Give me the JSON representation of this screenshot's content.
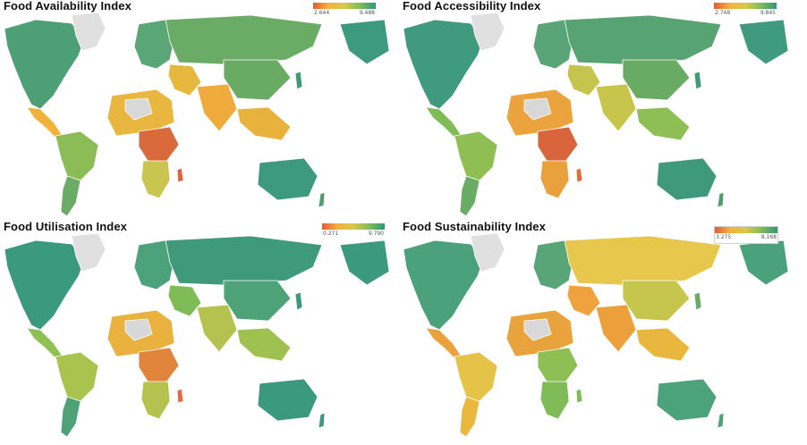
{
  "panels": [
    {
      "title": "Food Availability Index",
      "legend": {
        "min": "2.644",
        "max": "9.488",
        "colors": [
          "#e35a3a",
          "#f4b23c",
          "#7fbc5a",
          "#31957a"
        ]
      },
      "regions": {
        "north-america": "#4d9f76",
        "greenland": "#e0e0e0",
        "central-america": "#f2b23a",
        "south-america-north": "#8cbc55",
        "south-america-south": "#6aab65",
        "europe": "#5aa676",
        "russia": "#6aab66",
        "middle-east": "#e7b83e",
        "north-africa": "#e9b740",
        "central-africa": "#d86a3c",
        "southern-africa": "#c9c550",
        "south-asia": "#efab3b",
        "china": "#6aab63",
        "southeast-asia": "#e9b23c",
        "australia": "#3e9a7c",
        "madagascar": "#e3643a",
        "new-zealand": "#4e9c70",
        "japan": "#3f9a7a",
        "alaska": "#3e9a7c",
        "sahara": "#d8d8d8"
      }
    },
    {
      "title": "Food Accessibility Index",
      "legend": {
        "min": "2.748",
        "max": "9.845",
        "colors": [
          "#e35a3a",
          "#f4b23c",
          "#7fbc5a",
          "#31957a"
        ]
      },
      "regions": {
        "north-america": "#3f9a7e",
        "greenland": "#e0e0e0",
        "central-america": "#7fbc58",
        "south-america-north": "#8fbf52",
        "south-america-south": "#6aab66",
        "europe": "#5aa577",
        "russia": "#58a372",
        "middle-east": "#c5c44e",
        "north-africa": "#eba33e",
        "central-africa": "#d9653c",
        "southern-africa": "#e9a13e",
        "south-asia": "#c8c54d",
        "china": "#6aab63",
        "southeast-asia": "#8ebf54",
        "australia": "#3f9a7c",
        "madagascar": "#e46a3b",
        "new-zealand": "#4e9c70",
        "japan": "#3f9a7a",
        "alaska": "#3f9a7e",
        "sahara": "#d8d8d8"
      }
    },
    {
      "title": "Food Utilisation Index",
      "legend": {
        "min": "0.271",
        "max": "9.790",
        "colors": [
          "#e35a3a",
          "#f4b23c",
          "#7fbc5a",
          "#31957a"
        ]
      },
      "regions": {
        "north-america": "#3b9a7e",
        "greenland": "#e0e0e0",
        "central-america": "#8fc052",
        "south-america-north": "#a9c44e",
        "south-america-south": "#4fa277",
        "europe": "#4ca27a",
        "russia": "#3f9a7c",
        "middle-east": "#7fbc58",
        "north-africa": "#e9b13e",
        "central-africa": "#e0853b",
        "southern-africa": "#b6c24f",
        "south-asia": "#b5c24f",
        "china": "#4ea277",
        "southeast-asia": "#9ec14f",
        "australia": "#3b997d",
        "madagascar": "#e46a3b",
        "new-zealand": "#3b997d",
        "japan": "#3b997d",
        "alaska": "#3b9a7e",
        "sahara": "#d8d8d8"
      }
    },
    {
      "title": "Food Sustainability Index",
      "legend": {
        "min": "3.275",
        "max": "8.168",
        "colors": [
          "#e35a3a",
          "#f4b23c",
          "#7fbc5a",
          "#31957a"
        ]
      },
      "regions": {
        "north-america": "#4aa17b",
        "greenland": "#e0e0e0",
        "central-america": "#eaa23e",
        "south-america-north": "#e4c348",
        "south-america-south": "#e9b83f",
        "europe": "#5aa577",
        "russia": "#e7c84d",
        "middle-east": "#f0a23e",
        "north-africa": "#e8a33d",
        "central-africa": "#8ebf55",
        "southern-africa": "#7fbc58",
        "south-asia": "#eba03c",
        "china": "#c6c54d",
        "southeast-asia": "#e9b73e",
        "australia": "#4ca27a",
        "madagascar": "#7fbc58",
        "new-zealand": "#4ca27a",
        "japan": "#6aab66",
        "alaska": "#4aa17b",
        "sahara": "#d8d8d8"
      }
    }
  ]
}
